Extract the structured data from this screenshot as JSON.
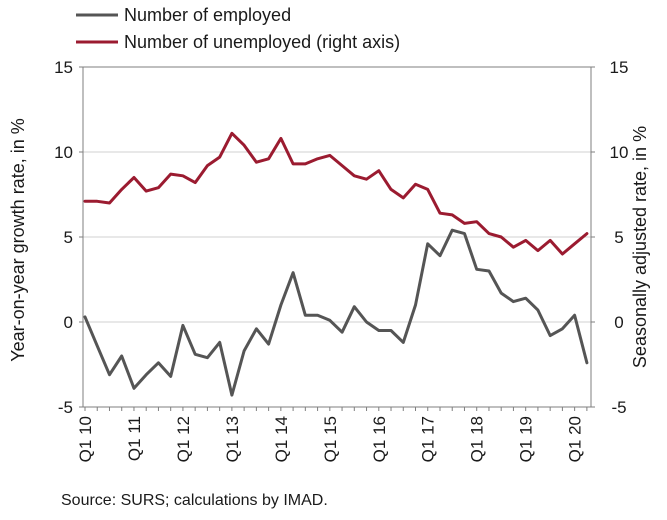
{
  "chart_data": {
    "type": "line",
    "legend": {
      "placement": "top-left"
    },
    "ylabel_left": "Year-on-year growth rate, in %",
    "ylabel_right": "Seasonally adjusted rate, in %",
    "ylim_left": [
      -5,
      15
    ],
    "ylim_right": [
      -5,
      15
    ],
    "yticks_left": [
      "-5",
      "0",
      "5",
      "10",
      "15"
    ],
    "yticks_right": [
      "-5",
      "0",
      "5",
      "10",
      "15"
    ],
    "grid": "horizontal",
    "x_tick_labels": [
      "Q1 10",
      "Q1 11",
      "Q1 12",
      "Q1 13",
      "Q1 14",
      "Q1 15",
      "Q1 16",
      "Q1 17",
      "Q1 18",
      "Q1 19",
      "Q1 20"
    ],
    "x": [
      "Q1 10",
      "Q2 10",
      "Q3 10",
      "Q4 10",
      "Q1 11",
      "Q2 11",
      "Q3 11",
      "Q4 11",
      "Q1 12",
      "Q2 12",
      "Q3 12",
      "Q4 12",
      "Q1 13",
      "Q2 13",
      "Q3 13",
      "Q4 13",
      "Q1 14",
      "Q2 14",
      "Q3 14",
      "Q4 14",
      "Q1 15",
      "Q2 15",
      "Q3 15",
      "Q4 15",
      "Q1 16",
      "Q2 16",
      "Q3 16",
      "Q4 16",
      "Q1 17",
      "Q2 17",
      "Q3 17",
      "Q4 17",
      "Q1 18",
      "Q2 18",
      "Q3 18",
      "Q4 18",
      "Q1 19",
      "Q2 19",
      "Q3 19",
      "Q4 19",
      "Q1 20",
      "Q2 20"
    ],
    "series": [
      {
        "name": "Number of employed",
        "axis": "left",
        "color": "#555555",
        "values": [
          0.3,
          -1.4,
          -3.1,
          -2.0,
          -3.9,
          -3.1,
          -2.4,
          -3.2,
          -0.2,
          -1.9,
          -2.1,
          -1.2,
          -4.3,
          -1.7,
          -0.4,
          -1.3,
          1.0,
          2.9,
          0.4,
          0.4,
          0.1,
          -0.6,
          0.9,
          0.0,
          -0.5,
          -0.5,
          -1.2,
          1.0,
          4.6,
          3.9,
          5.4,
          5.2,
          3.1,
          3.0,
          1.7,
          1.2,
          1.4,
          0.7,
          -0.8,
          -0.4,
          0.4,
          -2.4
        ]
      },
      {
        "name": "Number of unemployed (right axis)",
        "axis": "right",
        "color": "#9b1b30",
        "values": [
          7.1,
          7.1,
          7.0,
          7.8,
          8.5,
          7.7,
          7.9,
          8.7,
          8.6,
          8.2,
          9.2,
          9.7,
          11.1,
          10.4,
          9.4,
          9.6,
          10.8,
          9.3,
          9.3,
          9.6,
          9.8,
          9.2,
          8.6,
          8.4,
          8.9,
          7.8,
          7.3,
          8.1,
          7.8,
          6.4,
          6.3,
          5.8,
          5.9,
          5.2,
          5.0,
          4.4,
          4.8,
          4.2,
          4.8,
          4.0,
          4.6,
          5.2
        ]
      }
    ]
  },
  "source": "Source: SURS; calculations by IMAD."
}
